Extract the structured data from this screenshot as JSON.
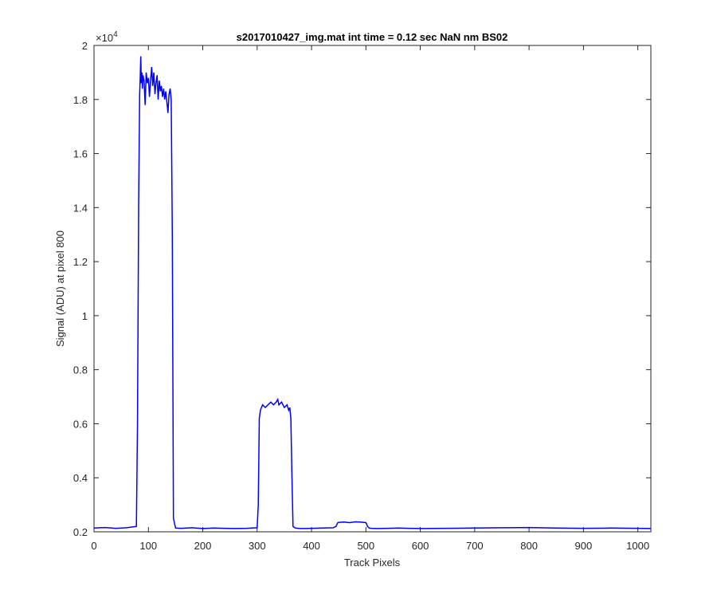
{
  "chart_data": {
    "type": "line",
    "title": "s2017010427_img.mat int time = 0.12 sec  NaN nm BS02",
    "xlabel": "Track Pixels",
    "ylabel": "Signal (ADU) at pixel 800",
    "exponent_base": "×10",
    "exponent_power": "4",
    "xlim": [
      0,
      1024
    ],
    "ylim": [
      0.2,
      2.0
    ],
    "y_scale_factor": 10000,
    "xticks": [
      0,
      100,
      200,
      300,
      400,
      500,
      600,
      700,
      800,
      900,
      1000
    ],
    "xtick_labels": [
      "0",
      "100",
      "200",
      "300",
      "400",
      "500",
      "600",
      "700",
      "800",
      "900",
      "1000"
    ],
    "yticks": [
      0.2,
      0.4,
      0.6,
      0.8,
      1.0,
      1.2,
      1.4,
      1.6,
      1.8,
      2.0
    ],
    "ytick_labels": [
      "0.2",
      "0.4",
      "0.6",
      "0.8",
      "1",
      "1.2",
      "1.4",
      "1.6",
      "1.8",
      "2"
    ],
    "grid": false,
    "line_color": "#0000ff",
    "series": [
      {
        "x": [
          0,
          20,
          40,
          60,
          78,
          80,
          82,
          84,
          85,
          86,
          87,
          88,
          89,
          90,
          92,
          94,
          96,
          98,
          100,
          102,
          104,
          106,
          108,
          110,
          112,
          114,
          116,
          118,
          120,
          122,
          124,
          126,
          128,
          130,
          132,
          134,
          136,
          138,
          140,
          142,
          144,
          146,
          150,
          160,
          180,
          200,
          220,
          240,
          260,
          280,
          300,
          302,
          304,
          306,
          308,
          310,
          315,
          320,
          325,
          330,
          335,
          338,
          340,
          345,
          350,
          355,
          358,
          360,
          362,
          364,
          366,
          370,
          380,
          400,
          420,
          440,
          445,
          448,
          450,
          460,
          470,
          480,
          490,
          500,
          503,
          506,
          510,
          520,
          540,
          560,
          580,
          600,
          650,
          700,
          750,
          800,
          850,
          900,
          950,
          1000,
          1024
        ],
        "y": [
          0.214,
          0.216,
          0.213,
          0.215,
          0.22,
          0.6,
          1.4,
          1.82,
          1.88,
          1.96,
          1.86,
          1.9,
          1.84,
          1.89,
          1.87,
          1.78,
          1.9,
          1.86,
          1.88,
          1.81,
          1.87,
          1.92,
          1.85,
          1.9,
          1.82,
          1.86,
          1.89,
          1.8,
          1.87,
          1.83,
          1.85,
          1.81,
          1.84,
          1.8,
          1.83,
          1.79,
          1.75,
          1.82,
          1.84,
          1.8,
          1.3,
          0.25,
          0.214,
          0.213,
          0.215,
          0.212,
          0.214,
          0.213,
          0.212,
          0.213,
          0.215,
          0.3,
          0.62,
          0.65,
          0.66,
          0.67,
          0.66,
          0.67,
          0.68,
          0.67,
          0.68,
          0.69,
          0.67,
          0.68,
          0.66,
          0.67,
          0.65,
          0.66,
          0.62,
          0.4,
          0.22,
          0.214,
          0.212,
          0.213,
          0.214,
          0.215,
          0.22,
          0.233,
          0.235,
          0.236,
          0.234,
          0.237,
          0.236,
          0.234,
          0.22,
          0.214,
          0.213,
          0.212,
          0.213,
          0.214,
          0.213,
          0.212,
          0.213,
          0.214,
          0.215,
          0.216,
          0.214,
          0.213,
          0.214,
          0.213,
          0.212
        ]
      }
    ]
  }
}
